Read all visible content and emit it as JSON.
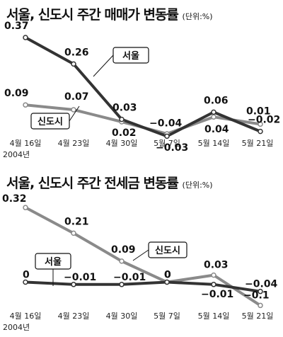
{
  "chart_data": [
    {
      "type": "line",
      "title": "서울, 신도시 주간 매매가 변동률",
      "unit": "(단위:%)",
      "categories": [
        "4월 16일",
        "4월 23일",
        "4월 30일",
        "5월 7일",
        "5월 14일",
        "5월 21일"
      ],
      "category_sublabel": "2004년",
      "series": [
        {
          "name": "서울",
          "values": [
            0.37,
            0.26,
            0.03,
            -0.04,
            0.06,
            -0.02
          ],
          "color": "#333333"
        },
        {
          "name": "신도시",
          "values": [
            0.09,
            0.07,
            0.02,
            -0.03,
            0.04,
            0.01
          ],
          "color": "#8a8a8a"
        }
      ],
      "ylim": [
        -0.08,
        0.42
      ],
      "grid": false
    },
    {
      "type": "line",
      "title": "서울, 신도시 주간 전세금 변동률",
      "unit": "(단위:%)",
      "categories": [
        "4월 16일",
        "4월 23일",
        "4월 30일",
        "5월 7일",
        "5월 14일",
        "5월 21일"
      ],
      "category_sublabel": "2004년",
      "series": [
        {
          "name": "서울",
          "values": [
            0,
            -0.01,
            -0.01,
            0,
            -0.01,
            -0.04
          ],
          "color": "#333333"
        },
        {
          "name": "신도시",
          "values": [
            0.32,
            0.21,
            0.09,
            0,
            0.03,
            -0.1
          ],
          "color": "#8a8a8a"
        }
      ],
      "ylim": [
        -0.12,
        0.36
      ],
      "grid": false
    }
  ]
}
